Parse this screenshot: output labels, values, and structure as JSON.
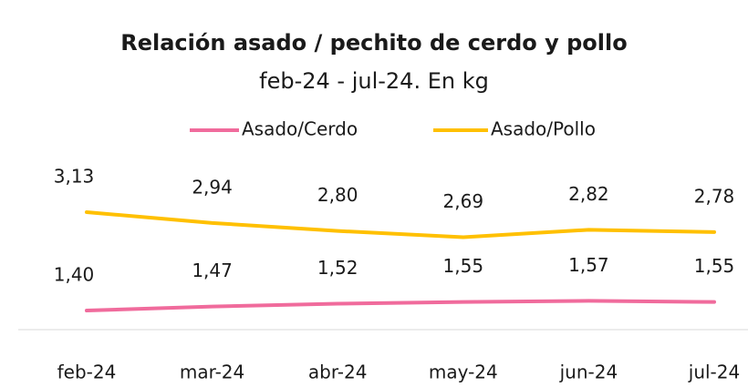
{
  "chart_data": {
    "type": "line",
    "title": "Relación asado / pechito de cerdo y pollo",
    "subtitle": "feb-24 - jul-24. En kg",
    "categories": [
      "feb-24",
      "mar-24",
      "abr-24",
      "may-24",
      "jun-24",
      "jul-24"
    ],
    "series": [
      {
        "name": "Asado/Cerdo",
        "color": "#f06b9c",
        "values": [
          1.4,
          1.47,
          1.52,
          1.55,
          1.57,
          1.55
        ],
        "value_labels": [
          "1,40",
          "1,47",
          "1,52",
          "1,55",
          "1,57",
          "1,55"
        ]
      },
      {
        "name": "Asado/Pollo",
        "color": "#ffc000",
        "values": [
          3.13,
          2.94,
          2.8,
          2.69,
          2.82,
          2.78
        ],
        "value_labels": [
          "3,13",
          "2,94",
          "2,80",
          "2,69",
          "2,82",
          "2,78"
        ]
      }
    ],
    "legend": "top"
  }
}
